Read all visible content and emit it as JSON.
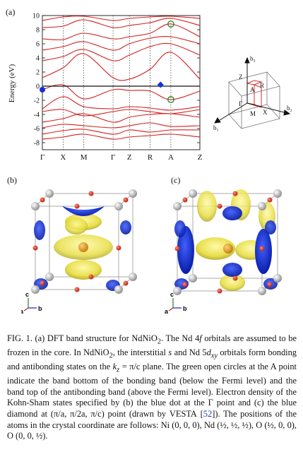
{
  "panels": {
    "a": "(a)",
    "b": "(b)",
    "c": "(c)"
  },
  "chart_data": {
    "type": "line",
    "title": "",
    "ylabel": "Energy (eV)",
    "xlabel": "",
    "ylim": [
      -9,
      10
    ],
    "yticks": [
      -8,
      -6,
      -4,
      -2,
      0,
      2,
      4,
      6,
      8,
      10
    ],
    "kpath": [
      "Γ",
      "X",
      "M",
      "Γ",
      "Z",
      "R",
      "A",
      "Z"
    ],
    "kpos": [
      0,
      1,
      2,
      3.41,
      4.2,
      5.2,
      6.2,
      7.6
    ],
    "fermi_level": 0,
    "markers": [
      {
        "kind": "blue-dot",
        "k": 0,
        "e": -0.5
      },
      {
        "kind": "blue-diamond",
        "k": 5.7,
        "e": 0.2
      },
      {
        "kind": "green-circle",
        "k": 6.2,
        "e": 8.8
      },
      {
        "kind": "green-circle",
        "k": 6.2,
        "e": -1.9
      }
    ],
    "series": [
      {
        "values": [
          [
            0,
            -0.5
          ],
          [
            1,
            0.2
          ],
          [
            2,
            -1.8
          ],
          [
            3.41,
            -0.5
          ],
          [
            4.2,
            -0.6
          ],
          [
            5.2,
            -0.7
          ],
          [
            6.2,
            -1.9
          ],
          [
            7.6,
            -0.7
          ]
        ]
      },
      {
        "values": [
          [
            0,
            1.2
          ],
          [
            1,
            2.6
          ],
          [
            2,
            4.6
          ],
          [
            3.41,
            1.2
          ],
          [
            4.2,
            1.0
          ],
          [
            5.2,
            2.4
          ],
          [
            6.2,
            4.8
          ],
          [
            7.6,
            1.0
          ]
        ]
      },
      {
        "values": [
          [
            0,
            -3.2
          ],
          [
            1,
            -1.5
          ],
          [
            2,
            -2.9
          ],
          [
            3.41,
            -3.2
          ],
          [
            4.2,
            -2.9
          ],
          [
            5.2,
            -3.1
          ],
          [
            6.2,
            -3.4
          ],
          [
            7.6,
            -2.9
          ]
        ]
      },
      {
        "values": [
          [
            0,
            -3.6
          ],
          [
            1,
            -3.3
          ],
          [
            2,
            -4.2
          ],
          [
            3.41,
            -3.6
          ],
          [
            4.2,
            -3.3
          ],
          [
            5.2,
            -3.6
          ],
          [
            6.2,
            -3.9
          ],
          [
            7.6,
            -3.3
          ]
        ]
      },
      {
        "values": [
          [
            0,
            -5.1
          ],
          [
            1,
            -4.6
          ],
          [
            2,
            -3.9
          ],
          [
            3.41,
            -5.1
          ],
          [
            4.2,
            -4.4
          ],
          [
            5.2,
            -4.0
          ],
          [
            6.2,
            -3.9
          ],
          [
            7.6,
            -4.4
          ]
        ]
      },
      {
        "values": [
          [
            0,
            -5.9
          ],
          [
            1,
            -5.4
          ],
          [
            2,
            -5.6
          ],
          [
            3.41,
            -5.9
          ],
          [
            4.2,
            -5.6
          ],
          [
            5.2,
            -5.2
          ],
          [
            6.2,
            -5.7
          ],
          [
            7.6,
            -5.6
          ]
        ]
      },
      {
        "values": [
          [
            0,
            -6.8
          ],
          [
            1,
            -6.3
          ],
          [
            2,
            -6.1
          ],
          [
            3.41,
            -6.8
          ],
          [
            4.2,
            -6.2
          ],
          [
            5.2,
            -6.5
          ],
          [
            6.2,
            -6.2
          ],
          [
            7.6,
            -6.2
          ]
        ]
      },
      {
        "values": [
          [
            0,
            -7.5
          ],
          [
            1,
            -7.2
          ],
          [
            2,
            -6.8
          ],
          [
            3.41,
            -7.5
          ],
          [
            4.2,
            -7.2
          ],
          [
            5.2,
            -7.0
          ],
          [
            6.2,
            -6.8
          ],
          [
            7.6,
            -7.2
          ]
        ]
      },
      {
        "values": [
          [
            0,
            3.6
          ],
          [
            1,
            4.2
          ],
          [
            2,
            5.2
          ],
          [
            3.41,
            3.6
          ],
          [
            4.2,
            4.4
          ],
          [
            5.2,
            5.6
          ],
          [
            6.2,
            6.0
          ],
          [
            7.6,
            4.4
          ]
        ]
      },
      {
        "values": [
          [
            0,
            5.1
          ],
          [
            1,
            5.6
          ],
          [
            2,
            6.3
          ],
          [
            3.41,
            5.1
          ],
          [
            4.2,
            6.0
          ],
          [
            5.2,
            6.8
          ],
          [
            6.2,
            7.0
          ],
          [
            7.6,
            6.0
          ]
        ]
      },
      {
        "values": [
          [
            0,
            6.7
          ],
          [
            1,
            6.6
          ],
          [
            2,
            7.5
          ],
          [
            3.41,
            6.7
          ],
          [
            4.2,
            7.0
          ],
          [
            5.2,
            7.5
          ],
          [
            6.2,
            8.8
          ],
          [
            7.6,
            7.0
          ]
        ]
      },
      {
        "values": [
          [
            0,
            8.3
          ],
          [
            1,
            8.5
          ],
          [
            2,
            9.4
          ],
          [
            3.41,
            8.3
          ],
          [
            4.2,
            8.6
          ],
          [
            5.2,
            9.0
          ],
          [
            6.2,
            9.6
          ],
          [
            7.6,
            8.6
          ]
        ]
      },
      {
        "values": [
          [
            0,
            9.3
          ],
          [
            1,
            9.8
          ],
          [
            2,
            9.9
          ],
          [
            3.41,
            9.3
          ],
          [
            4.2,
            9.6
          ],
          [
            5.2,
            9.8
          ],
          [
            6.2,
            9.9
          ],
          [
            7.6,
            9.6
          ]
        ]
      }
    ]
  },
  "bz": {
    "labels": {
      "b3": "b₃",
      "b2": "b₂",
      "b1": "b₁",
      "Z": "Z",
      "A": "A",
      "R": "R",
      "Gamma": "Γ",
      "X": "X",
      "M": "M"
    }
  },
  "axes_labels": {
    "c": "c",
    "a": "a",
    "b": "b"
  },
  "caption": {
    "text": "FIG. 1. (a) DFT band structure for NdNiO₂. The Nd 4f orbitals are assumed to be frozen in the core. In NdNiO₂, the interstitial s and Nd 5d_xy orbitals form bonding and antibonding states on the k_z = π/c plane. The green open circles at the A point indicate the band bottom of the bonding band (below the Fermi level) and the band top of the antibonding band (above the Fermi level). Electron density of the Kohn-Sham states specified by (b) the blue dot at the Γ point and (c) the blue diamond at (π/a, π/2a, π/c) point (drawn by VESTA [52]). The positions of the atoms in the crystal coordinate are follows: Ni (0, 0, 0), Nd (½, ½, ½), O (½, 0, 0), O (0, 0, ½).",
    "parts": {
      "l1a": "FIG. 1. (a) DFT band structure for NdNiO",
      "l1b": ". The Nd 4",
      "l1c": "f",
      "l1d": " orbitals are assumed to be frozen in the core. In NdNiO",
      "l1e": ", the interstitial ",
      "l1f": "s",
      "l1g": " and Nd 5",
      "l1h": "d",
      "l1i": "xy",
      "l1j": " orbitals form bonding and antibonding states on the ",
      "l1k": "k",
      "l1l": "z",
      "l1m": " = π/c plane. The green open circles at the A point indicate the band bottom of the bonding band (below the Fermi level) and the band top of the antibonding band (above the Fermi level). Electron density of the Kohn-Sham states specified by (b) the blue dot at the Γ point and (c) the blue diamond at (π/a, π/2a, π/c) point (drawn by ",
      "l1n": "VESTA",
      "l1o": " [",
      "l1p": "52",
      "l1q": "]). The positions of the atoms in the crystal coordinate are follows: Ni (0, 0, 0), Nd (½, ½, ½), O (½, 0, 0), O (0, 0, ½)."
    }
  }
}
